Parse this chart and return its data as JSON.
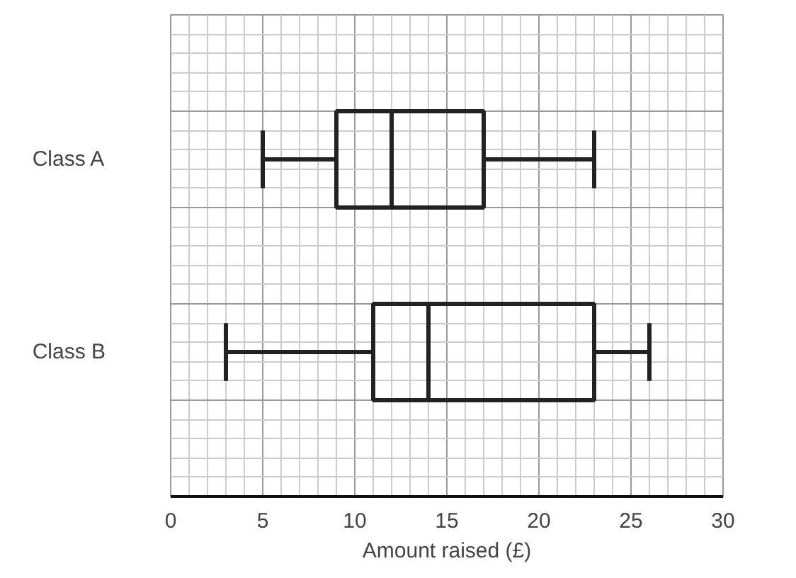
{
  "chart_data": {
    "type": "box",
    "orientation": "horizontal",
    "categories": [
      "Class A",
      "Class B"
    ],
    "boxes": [
      {
        "low": 5,
        "q1": 9,
        "median": 12,
        "q3": 17,
        "high": 23
      },
      {
        "low": 3,
        "q1": 11,
        "median": 14,
        "q3": 23,
        "high": 26
      }
    ],
    "color": "#222222",
    "xlabel": "Amount raised (£)",
    "xlim": [
      0,
      30
    ],
    "xticks": [
      0,
      5,
      10,
      15,
      20,
      25,
      30
    ],
    "grid": true
  }
}
